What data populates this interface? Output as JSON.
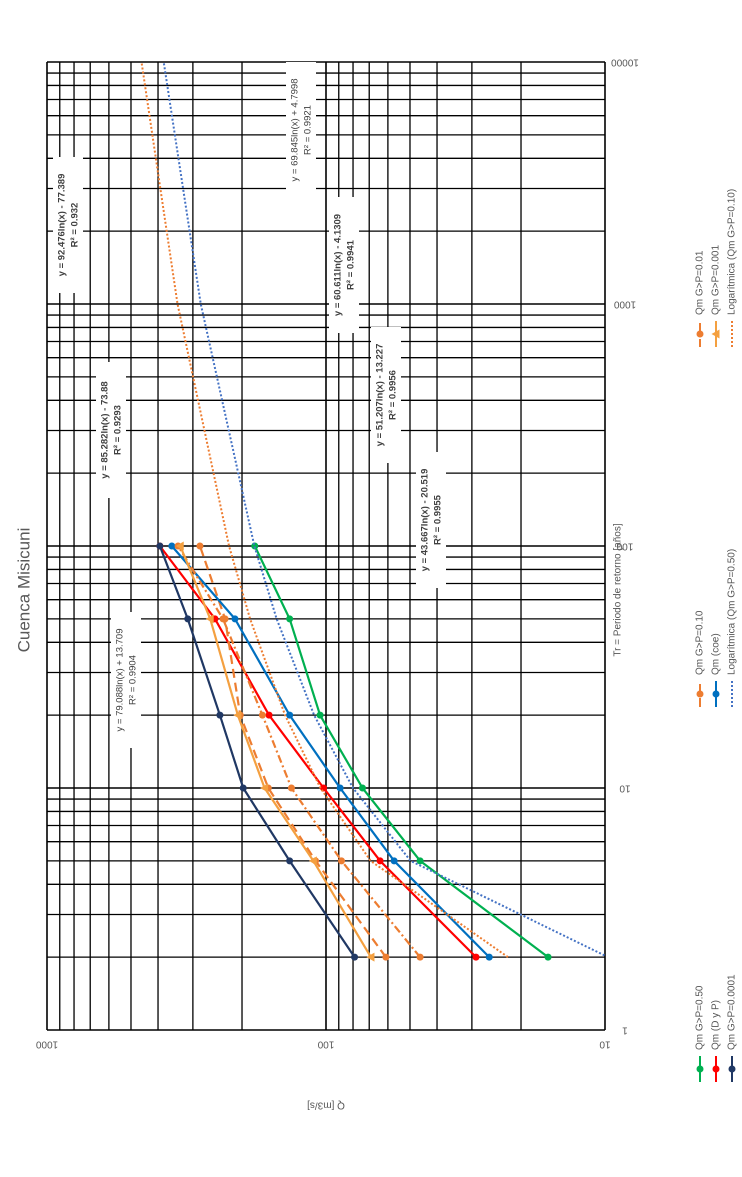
{
  "chart_data": {
    "type": "line",
    "title": "Cuenca Misicuni",
    "x_label": "Tr = Periodo de retorno [años]",
    "y_label": "Q [m3/s]",
    "xscale": "log",
    "yscale": "log",
    "xlim": [
      1,
      10000
    ],
    "xticks": [
      1,
      10,
      100,
      1000,
      10000
    ],
    "ylim": [
      10,
      1000
    ],
    "yticks": [
      10,
      100,
      1000
    ],
    "grid": true,
    "series": [
      {
        "name": "Qm G>P=0.50",
        "color": "#00b050",
        "line_style": "solid",
        "marker": "circle",
        "x": [
          2,
          5,
          10,
          20,
          50,
          100
        ],
        "values": [
          16,
          46,
          74,
          105,
          135,
          180
        ]
      },
      {
        "name": "Qm (D y P)",
        "color": "#ff0000",
        "line_style": "solid",
        "marker": "circle",
        "x": [
          2,
          5,
          10,
          20,
          50,
          100
        ],
        "values": [
          29,
          64,
          102,
          160,
          250,
          394
        ]
      },
      {
        "name": "Qm G>P=0.0001",
        "color": "#203864",
        "line_style": "solid",
        "marker": "circle",
        "x": [
          2,
          5,
          10,
          20,
          50,
          100
        ],
        "values": [
          79,
          135,
          198,
          240,
          313,
          394
        ]
      },
      {
        "name": "Qm G>P=0.10",
        "color": "#ed7d31",
        "line_style": "dashed",
        "marker": "circle",
        "x": [
          2,
          5,
          10,
          20,
          50,
          100
        ],
        "values": [
          61,
          109,
          161,
          203,
          230,
          283
        ]
      },
      {
        "name": "Qm (coe)",
        "color": "#0070c0",
        "line_style": "solid",
        "marker": "circle",
        "x": [
          2,
          5,
          10,
          20,
          50,
          100
        ],
        "values": [
          26,
          57,
          89,
          135,
          212,
          357
        ]
      },
      {
        "name": "Logarítmica (Qm G>P=0.50)",
        "color": "#4472c4",
        "line_style": "dotted",
        "marker": "none",
        "x": [
          2,
          5,
          10,
          20,
          50,
          100,
          1000,
          10000
        ],
        "values": [
          9.75,
          49.76,
          80.03,
          110.3,
          150.3,
          180.6,
          281.1,
          381.7
        ]
      },
      {
        "name": "Qm G>P=0.01",
        "color": "#ed7d31",
        "line_style": "dashdot",
        "marker": "circle",
        "x": [
          2,
          5,
          10,
          20,
          50,
          100
        ],
        "values": [
          46,
          88,
          133,
          169,
          234,
          339
        ]
      },
      {
        "name": "Qm G>P=0.001",
        "color": "#f4a040",
        "line_style": "solid",
        "marker": "triangle",
        "x": [
          2,
          5,
          10,
          20,
          50,
          100
        ],
        "values": [
          69,
          111,
          166,
          207,
          260,
          333
        ]
      },
      {
        "name": "Logarítmica (Qm G>P=0.10)",
        "color": "#ed7d31",
        "line_style": "dotted",
        "marker": "none",
        "x": [
          2,
          5,
          10,
          20,
          50,
          100,
          1000,
          10000
        ],
        "values": [
          22.27,
          69.19,
          104.68,
          140.17,
          187.1,
          222.6,
          340.5,
          458.4
        ]
      }
    ],
    "annotations": [
      {
        "equation": "y = 79.088ln(x) + 13.709",
        "r2": "R² = 0.9904"
      },
      {
        "equation": "y = 85.282ln(x) - 73.88",
        "r2": "R² = 0.9293"
      },
      {
        "equation": "y = 92.476ln(x) - 77.389",
        "r2": "R² = 0.932"
      },
      {
        "equation": "y = 69.845ln(x) + 4.7998",
        "r2": "R² = 0.9921"
      },
      {
        "equation": "y = 60.611ln(x) - 4.1309",
        "r2": "R² = 0.9941"
      },
      {
        "equation": "y = 51.207ln(x) - 13.227",
        "r2": "R² = 0.9956"
      },
      {
        "equation": "y = 43.667ln(x) - 20.519",
        "r2": "R² = 0.9955"
      }
    ]
  }
}
